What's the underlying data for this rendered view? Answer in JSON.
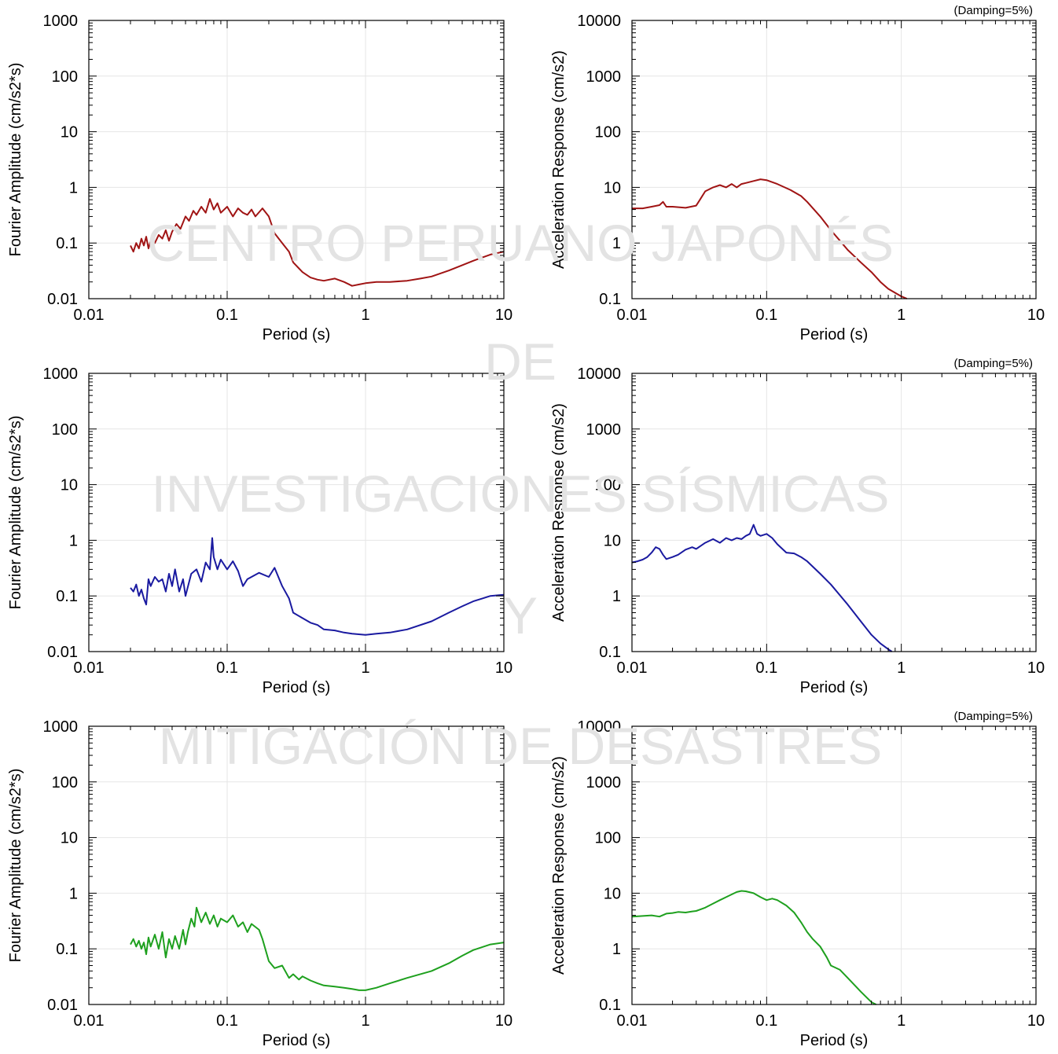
{
  "watermark": {
    "lines": [
      "CENTRO PERUANO JAPONÉS",
      "DE",
      "INVESTIGACIONES SÍSMICAS",
      "Y",
      "MITIGACIÓN DE DESASTRES"
    ]
  },
  "colors": {
    "row1": "#a01414",
    "row2": "#1a1aa0",
    "row3": "#1ea01e",
    "watermark": "#e3e3e3",
    "grid": "#e6e6e6"
  },
  "chart_data": [
    {
      "id": "fourier-1",
      "type": "line",
      "xscale": "log",
      "yscale": "log",
      "xlim": [
        0.01,
        10
      ],
      "ylim": [
        0.01,
        1000
      ],
      "xticks": [
        "0.01",
        "0.1",
        "1",
        "10"
      ],
      "yticks": [
        "0.01",
        "0.1",
        "1",
        "10",
        "100",
        "1000"
      ],
      "xlabel": "Period (s)",
      "ylabel": "Fourier Amplitude (cm/s2*s)",
      "note": "",
      "color": "row1",
      "grid": true,
      "series": [
        {
          "x": [
            0.02,
            0.021,
            0.022,
            0.023,
            0.024,
            0.025,
            0.026,
            0.027,
            0.028,
            0.03,
            0.032,
            0.034,
            0.036,
            0.038,
            0.04,
            0.043,
            0.046,
            0.05,
            0.053,
            0.057,
            0.06,
            0.065,
            0.07,
            0.075,
            0.08,
            0.085,
            0.09,
            0.1,
            0.11,
            0.12,
            0.13,
            0.14,
            0.15,
            0.16,
            0.18,
            0.2,
            0.22,
            0.25,
            0.28,
            0.3,
            0.35,
            0.4,
            0.45,
            0.5,
            0.6,
            0.7,
            0.8,
            0.9,
            1.0,
            1.2,
            1.5,
            2.0,
            2.5,
            3.0,
            4.0,
            5.0,
            6.0,
            7.0,
            8.0,
            10.0
          ],
          "y": [
            0.09,
            0.07,
            0.1,
            0.08,
            0.12,
            0.09,
            0.13,
            0.08,
            0.11,
            0.1,
            0.14,
            0.12,
            0.17,
            0.11,
            0.16,
            0.22,
            0.18,
            0.3,
            0.25,
            0.38,
            0.32,
            0.45,
            0.35,
            0.62,
            0.4,
            0.52,
            0.35,
            0.45,
            0.3,
            0.42,
            0.35,
            0.32,
            0.4,
            0.3,
            0.42,
            0.3,
            0.15,
            0.1,
            0.07,
            0.045,
            0.03,
            0.024,
            0.022,
            0.021,
            0.023,
            0.02,
            0.017,
            0.018,
            0.019,
            0.02,
            0.02,
            0.021,
            0.023,
            0.025,
            0.032,
            0.04,
            0.048,
            0.055,
            0.062,
            0.07
          ]
        }
      ]
    },
    {
      "id": "response-1",
      "type": "line",
      "xscale": "log",
      "yscale": "log",
      "xlim": [
        0.01,
        10
      ],
      "ylim": [
        0.1,
        10000
      ],
      "xticks": [
        "0.01",
        "0.1",
        "1",
        "10"
      ],
      "yticks": [
        "0.1",
        "1",
        "10",
        "100",
        "1000",
        "10000"
      ],
      "xlabel": "Period (s)",
      "ylabel": "Acceleration Response (cm/s2)",
      "note": "(Damping=5%)",
      "color": "row1",
      "grid": true,
      "series": [
        {
          "x": [
            0.01,
            0.012,
            0.014,
            0.016,
            0.017,
            0.018,
            0.02,
            0.025,
            0.03,
            0.032,
            0.035,
            0.04,
            0.045,
            0.05,
            0.055,
            0.06,
            0.065,
            0.07,
            0.08,
            0.09,
            0.1,
            0.12,
            0.15,
            0.18,
            0.2,
            0.25,
            0.3,
            0.35,
            0.4,
            0.5,
            0.6,
            0.7,
            0.8,
            1.0,
            1.1
          ],
          "y": [
            4.2,
            4.2,
            4.5,
            4.8,
            5.5,
            4.5,
            4.5,
            4.3,
            4.7,
            6.0,
            8.5,
            10.0,
            11.0,
            10.0,
            11.5,
            10.0,
            11.5,
            12.0,
            13.0,
            14.0,
            13.5,
            11.5,
            9.0,
            7.0,
            5.5,
            3.0,
            1.7,
            1.1,
            0.75,
            0.45,
            0.3,
            0.2,
            0.15,
            0.11,
            0.095
          ]
        }
      ]
    },
    {
      "id": "fourier-2",
      "type": "line",
      "xscale": "log",
      "yscale": "log",
      "xlim": [
        0.01,
        10
      ],
      "ylim": [
        0.01,
        1000
      ],
      "xticks": [
        "0.01",
        "0.1",
        "1",
        "10"
      ],
      "yticks": [
        "0.01",
        "0.1",
        "1",
        "10",
        "100",
        "1000"
      ],
      "xlabel": "Period (s)",
      "ylabel": "Fourier Amplitude (cm/s2*s)",
      "note": "",
      "color": "row2",
      "grid": true,
      "series": [
        {
          "x": [
            0.02,
            0.021,
            0.022,
            0.023,
            0.024,
            0.025,
            0.026,
            0.027,
            0.028,
            0.03,
            0.032,
            0.034,
            0.036,
            0.038,
            0.04,
            0.042,
            0.045,
            0.048,
            0.05,
            0.055,
            0.06,
            0.065,
            0.07,
            0.075,
            0.078,
            0.08,
            0.085,
            0.09,
            0.1,
            0.11,
            0.12,
            0.13,
            0.14,
            0.15,
            0.17,
            0.2,
            0.22,
            0.25,
            0.28,
            0.3,
            0.35,
            0.4,
            0.45,
            0.5,
            0.6,
            0.7,
            0.8,
            1.0,
            1.2,
            1.5,
            2.0,
            3.0,
            4.0,
            5.0,
            6.0,
            7.0,
            8.0,
            10.0
          ],
          "y": [
            0.14,
            0.12,
            0.16,
            0.1,
            0.13,
            0.09,
            0.07,
            0.2,
            0.15,
            0.22,
            0.18,
            0.2,
            0.12,
            0.25,
            0.15,
            0.3,
            0.12,
            0.2,
            0.1,
            0.25,
            0.3,
            0.18,
            0.4,
            0.3,
            1.1,
            0.5,
            0.3,
            0.45,
            0.3,
            0.42,
            0.28,
            0.15,
            0.2,
            0.22,
            0.26,
            0.22,
            0.32,
            0.15,
            0.09,
            0.05,
            0.04,
            0.033,
            0.03,
            0.025,
            0.024,
            0.022,
            0.021,
            0.02,
            0.021,
            0.022,
            0.025,
            0.035,
            0.05,
            0.065,
            0.08,
            0.09,
            0.1,
            0.105
          ]
        }
      ]
    },
    {
      "id": "response-2",
      "type": "line",
      "xscale": "log",
      "yscale": "log",
      "xlim": [
        0.01,
        10
      ],
      "ylim": [
        0.1,
        10000
      ],
      "xticks": [
        "0.01",
        "0.1",
        "1",
        "10"
      ],
      "yticks": [
        "0.1",
        "1",
        "10",
        "100",
        "1000",
        "10000"
      ],
      "xlabel": "Period (s)",
      "ylabel": "Acceleration Response (cm/s2)",
      "note": "(Damping=5%)",
      "color": "row2",
      "grid": true,
      "series": [
        {
          "x": [
            0.01,
            0.011,
            0.012,
            0.013,
            0.014,
            0.015,
            0.016,
            0.017,
            0.018,
            0.02,
            0.022,
            0.025,
            0.028,
            0.03,
            0.035,
            0.04,
            0.045,
            0.05,
            0.055,
            0.06,
            0.065,
            0.07,
            0.075,
            0.08,
            0.085,
            0.09,
            0.1,
            0.11,
            0.12,
            0.14,
            0.16,
            0.18,
            0.2,
            0.25,
            0.3,
            0.4,
            0.5,
            0.6,
            0.7,
            0.8,
            0.85
          ],
          "y": [
            4.0,
            4.2,
            4.5,
            5.0,
            6.0,
            7.5,
            7.0,
            5.5,
            4.6,
            5.0,
            5.5,
            6.8,
            7.5,
            7.0,
            9.0,
            10.5,
            9.0,
            11.0,
            10.0,
            11.0,
            10.5,
            12.0,
            13.0,
            19.0,
            13.0,
            12.0,
            13.0,
            11.0,
            8.5,
            6.0,
            5.8,
            5.0,
            4.2,
            2.5,
            1.6,
            0.7,
            0.35,
            0.2,
            0.14,
            0.11,
            0.09
          ]
        }
      ]
    },
    {
      "id": "fourier-3",
      "type": "line",
      "xscale": "log",
      "yscale": "log",
      "xlim": [
        0.01,
        10
      ],
      "ylim": [
        0.01,
        1000
      ],
      "xticks": [
        "0.01",
        "0.1",
        "1",
        "10"
      ],
      "yticks": [
        "0.01",
        "0.1",
        "1",
        "10",
        "100",
        "1000"
      ],
      "xlabel": "Period (s)",
      "ylabel": "Fourier Amplitude (cm/s2*s)",
      "note": "",
      "color": "row3",
      "grid": true,
      "series": [
        {
          "x": [
            0.02,
            0.021,
            0.022,
            0.023,
            0.024,
            0.025,
            0.026,
            0.027,
            0.028,
            0.03,
            0.032,
            0.034,
            0.036,
            0.038,
            0.04,
            0.042,
            0.045,
            0.048,
            0.05,
            0.052,
            0.055,
            0.058,
            0.06,
            0.065,
            0.07,
            0.075,
            0.08,
            0.085,
            0.09,
            0.1,
            0.11,
            0.12,
            0.13,
            0.14,
            0.15,
            0.17,
            0.18,
            0.2,
            0.22,
            0.25,
            0.28,
            0.3,
            0.33,
            0.35,
            0.4,
            0.45,
            0.5,
            0.6,
            0.7,
            0.8,
            0.9,
            1.0,
            1.2,
            1.5,
            2.0,
            3.0,
            4.0,
            5.0,
            6.0,
            8.0,
            10.0
          ],
          "y": [
            0.12,
            0.15,
            0.11,
            0.14,
            0.1,
            0.13,
            0.08,
            0.16,
            0.11,
            0.18,
            0.1,
            0.2,
            0.07,
            0.15,
            0.1,
            0.17,
            0.1,
            0.22,
            0.12,
            0.2,
            0.35,
            0.25,
            0.55,
            0.3,
            0.45,
            0.28,
            0.4,
            0.25,
            0.35,
            0.3,
            0.4,
            0.25,
            0.3,
            0.2,
            0.28,
            0.22,
            0.15,
            0.06,
            0.045,
            0.05,
            0.03,
            0.035,
            0.028,
            0.032,
            0.027,
            0.024,
            0.022,
            0.021,
            0.02,
            0.019,
            0.018,
            0.018,
            0.02,
            0.024,
            0.03,
            0.04,
            0.055,
            0.075,
            0.095,
            0.12,
            0.13
          ]
        }
      ]
    },
    {
      "id": "response-3",
      "type": "line",
      "xscale": "log",
      "yscale": "log",
      "xlim": [
        0.01,
        10
      ],
      "ylim": [
        0.1,
        10000
      ],
      "xticks": [
        "0.01",
        "0.1",
        "1",
        "10"
      ],
      "yticks": [
        "0.1",
        "1",
        "10",
        "100",
        "1000",
        "10000"
      ],
      "xlabel": "Period (s)",
      "ylabel": "Acceleration Response (cm/s2)",
      "note": "(Damping=5%)",
      "color": "row3",
      "grid": true,
      "series": [
        {
          "x": [
            0.01,
            0.012,
            0.014,
            0.016,
            0.018,
            0.02,
            0.022,
            0.025,
            0.028,
            0.03,
            0.035,
            0.04,
            0.045,
            0.05,
            0.055,
            0.06,
            0.065,
            0.07,
            0.08,
            0.09,
            0.1,
            0.11,
            0.12,
            0.14,
            0.16,
            0.18,
            0.2,
            0.22,
            0.25,
            0.28,
            0.3,
            0.35,
            0.4,
            0.5,
            0.6,
            0.65
          ],
          "y": [
            3.8,
            3.9,
            4.0,
            3.8,
            4.3,
            4.4,
            4.6,
            4.5,
            4.7,
            4.8,
            5.5,
            6.5,
            7.5,
            8.5,
            9.5,
            10.5,
            11.0,
            10.8,
            10.0,
            8.5,
            7.5,
            8.0,
            7.5,
            6.0,
            4.5,
            3.0,
            2.0,
            1.5,
            1.1,
            0.7,
            0.5,
            0.42,
            0.3,
            0.17,
            0.11,
            0.095
          ]
        }
      ]
    }
  ]
}
